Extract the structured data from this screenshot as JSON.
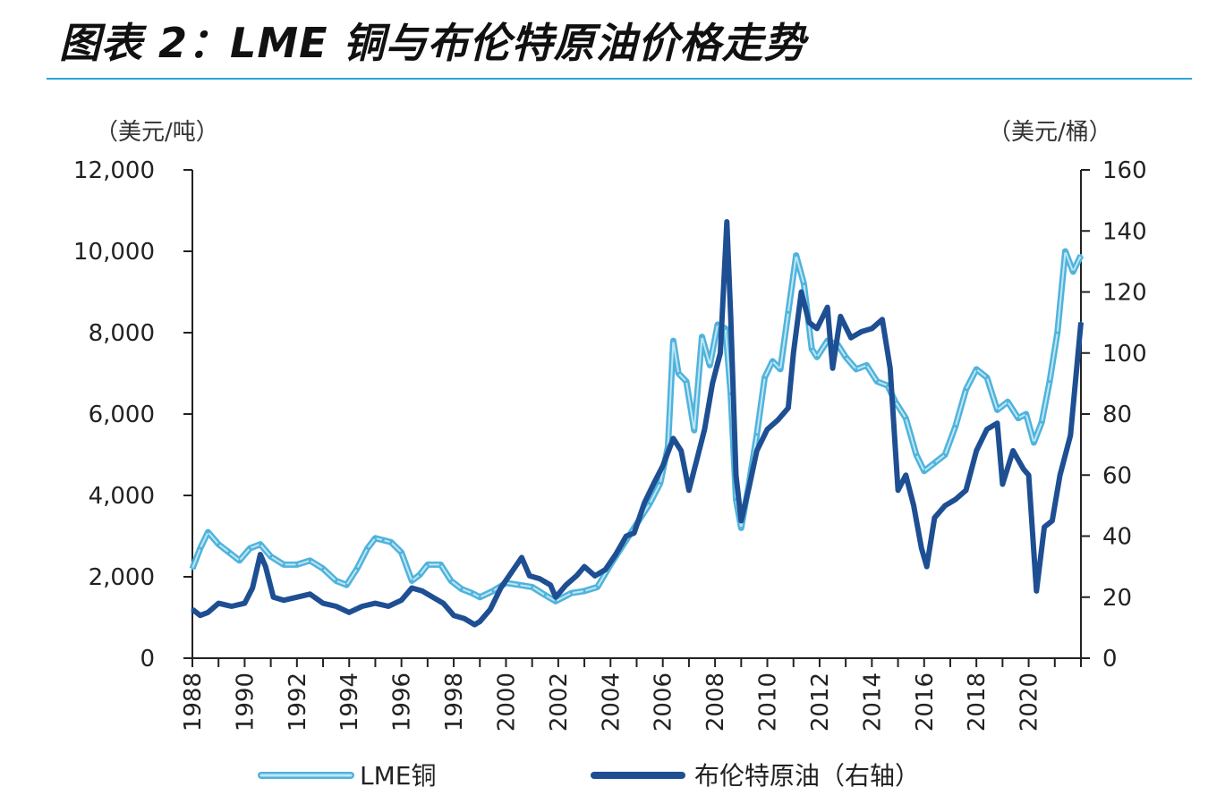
{
  "title": "图表 2：LME 铜与布伦特原油价格走势",
  "colors": {
    "rule": "#2aa6d9",
    "copper": "#4fb3dc",
    "copper_core": "#bfe6f5",
    "oil": "#1e4f93",
    "axis": "#222222"
  },
  "chart_data": {
    "type": "line",
    "title": "图表 2：LME 铜与布伦特原油价格走势",
    "left_axis": {
      "unit_label": "（美元/吨）",
      "ylim": [
        0,
        12000
      ],
      "ticks": [
        "12,000",
        "10,000",
        "8,000",
        "6,000",
        "4,000",
        "2,000",
        "0"
      ]
    },
    "right_axis": {
      "unit_label": "（美元/桶）",
      "ylim": [
        0,
        160
      ],
      "ticks": [
        "160",
        "140",
        "120",
        "100",
        "80",
        "60",
        "40",
        "20",
        "0"
      ]
    },
    "x_range": [
      1988,
      2022
    ],
    "x_ticks": [
      "1988",
      "1990",
      "1992",
      "1994",
      "1996",
      "1998",
      "2000",
      "2002",
      "2004",
      "2006",
      "2008",
      "2010",
      "2012",
      "2014",
      "2016",
      "2018",
      "2020"
    ],
    "legend_position": "bottom",
    "series": [
      {
        "name": "LME铜",
        "axis": "left",
        "x": [
          1988.0,
          1988.3,
          1988.6,
          1989.0,
          1989.4,
          1989.8,
          1990.2,
          1990.6,
          1991.0,
          1991.5,
          1992.0,
          1992.5,
          1993.0,
          1993.5,
          1993.9,
          1994.3,
          1994.7,
          1995.0,
          1995.3,
          1995.6,
          1996.0,
          1996.4,
          1996.7,
          1997.0,
          1997.5,
          1997.9,
          1998.3,
          1998.7,
          1999.0,
          1999.5,
          2000.0,
          2000.5,
          2001.0,
          2001.5,
          2001.9,
          2002.5,
          2003.0,
          2003.5,
          2004.0,
          2004.5,
          2005.0,
          2005.5,
          2005.9,
          2006.2,
          2006.4,
          2006.6,
          2006.9,
          2007.2,
          2007.5,
          2007.8,
          2008.1,
          2008.4,
          2008.6,
          2008.8,
          2009.0,
          2009.3,
          2009.6,
          2009.9,
          2010.2,
          2010.5,
          2010.8,
          2011.1,
          2011.4,
          2011.7,
          2011.9,
          2012.3,
          2012.7,
          2013.0,
          2013.4,
          2013.8,
          2014.2,
          2014.6,
          2014.9,
          2015.3,
          2015.7,
          2016.0,
          2016.4,
          2016.8,
          2017.2,
          2017.6,
          2018.0,
          2018.4,
          2018.8,
          2019.2,
          2019.6,
          2019.9,
          2020.2,
          2020.5,
          2020.8,
          2021.1,
          2021.4,
          2021.7,
          2022.0
        ],
        "values": [
          2200,
          2700,
          3100,
          2800,
          2600,
          2400,
          2700,
          2800,
          2500,
          2300,
          2300,
          2400,
          2200,
          1900,
          1800,
          2200,
          2700,
          2950,
          2900,
          2850,
          2600,
          1900,
          2050,
          2300,
          2300,
          1900,
          1700,
          1600,
          1500,
          1650,
          1850,
          1800,
          1750,
          1550,
          1400,
          1600,
          1650,
          1750,
          2300,
          2800,
          3300,
          3800,
          4300,
          5200,
          7800,
          7000,
          6800,
          5600,
          7900,
          7200,
          8200,
          8100,
          6500,
          3900,
          3200,
          4300,
          5500,
          6900,
          7300,
          7100,
          8500,
          9900,
          9200,
          7600,
          7400,
          7800,
          7700,
          7400,
          7100,
          7200,
          6800,
          6700,
          6300,
          5900,
          5000,
          4600,
          4800,
          5000,
          5700,
          6600,
          7100,
          6900,
          6100,
          6300,
          5900,
          6000,
          5300,
          5800,
          6800,
          8000,
          10000,
          9500,
          9900
        ]
      },
      {
        "name": "布伦特原油（右轴）",
        "axis": "right",
        "x": [
          1988.0,
          1988.3,
          1988.6,
          1989.0,
          1989.5,
          1990.0,
          1990.3,
          1990.6,
          1990.8,
          1991.1,
          1991.5,
          1992.0,
          1992.5,
          1993.0,
          1993.5,
          1994.0,
          1994.5,
          1995.0,
          1995.5,
          1996.0,
          1996.4,
          1996.8,
          1997.2,
          1997.6,
          1998.0,
          1998.4,
          1998.8,
          1999.0,
          1999.4,
          1999.8,
          2000.2,
          2000.6,
          2000.9,
          2001.3,
          2001.7,
          2001.9,
          2002.3,
          2002.7,
          2003.0,
          2003.4,
          2003.8,
          2004.2,
          2004.6,
          2004.9,
          2005.3,
          2005.7,
          2006.0,
          2006.4,
          2006.7,
          2007.0,
          2007.3,
          2007.6,
          2007.9,
          2008.2,
          2008.45,
          2008.6,
          2008.8,
          2009.0,
          2009.3,
          2009.6,
          2010.0,
          2010.4,
          2010.8,
          2011.0,
          2011.3,
          2011.6,
          2011.9,
          2012.3,
          2012.5,
          2012.8,
          2013.2,
          2013.6,
          2014.0,
          2014.4,
          2014.7,
          2015.0,
          2015.3,
          2015.6,
          2015.9,
          2016.1,
          2016.4,
          2016.8,
          2017.2,
          2017.6,
          2018.0,
          2018.4,
          2018.8,
          2019.0,
          2019.4,
          2019.8,
          2020.0,
          2020.3,
          2020.6,
          2020.9,
          2021.2,
          2021.6,
          2022.0
        ],
        "values": [
          16,
          14,
          15,
          18,
          17,
          18,
          23,
          34,
          30,
          20,
          19,
          20,
          21,
          18,
          17,
          15,
          17,
          18,
          17,
          19,
          23,
          22,
          20,
          18,
          14,
          13,
          11,
          12,
          16,
          23,
          28,
          33,
          27,
          26,
          24,
          20,
          24,
          27,
          30,
          27,
          29,
          34,
          40,
          41,
          51,
          58,
          63,
          72,
          68,
          55,
          65,
          75,
          90,
          100,
          143,
          112,
          60,
          45,
          56,
          68,
          75,
          78,
          82,
          100,
          120,
          110,
          108,
          115,
          95,
          112,
          105,
          107,
          108,
          111,
          95,
          55,
          60,
          50,
          36,
          30,
          46,
          50,
          52,
          55,
          68,
          75,
          77,
          57,
          68,
          62,
          60,
          22,
          43,
          45,
          60,
          73,
          110
        ]
      }
    ]
  }
}
